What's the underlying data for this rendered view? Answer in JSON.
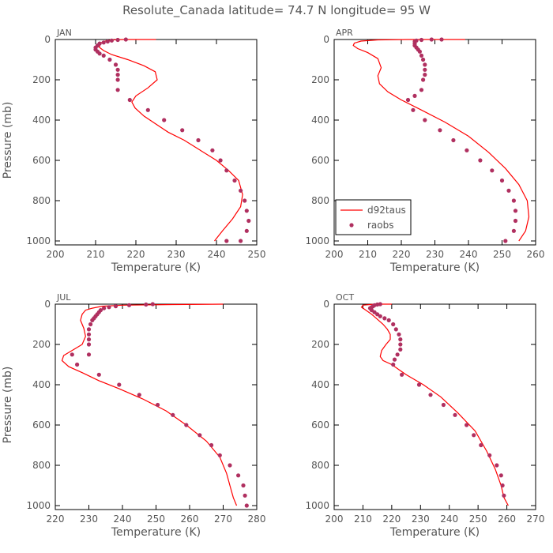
{
  "title": "Resolute_Canada   latitude= 74.7 N longitude= 95 W",
  "legend": {
    "model": "d92taus",
    "obs": "raobs"
  },
  "colors": {
    "model": "#ff0000",
    "obs": "#b03060",
    "axis": "#000000",
    "text": "#555555",
    "background": "#ffffff"
  },
  "chart_data": [
    {
      "type": "line",
      "month": "JAN",
      "xlabel": "Temperature (K)",
      "ylabel": "Pressure (mb)",
      "xlim": [
        200,
        250
      ],
      "ylim": [
        0,
        1020
      ],
      "y_inverted": true,
      "xticks": [
        200,
        210,
        220,
        230,
        240,
        250
      ],
      "yticks": [
        0,
        200,
        400,
        600,
        800,
        1000
      ],
      "legend": false,
      "series": [
        {
          "name": "d92taus",
          "style": "line",
          "x": [
            225,
            221,
            217,
            214,
            212.5,
            211.5,
            211,
            211,
            212,
            214,
            218,
            222,
            224.8,
            225.3,
            223,
            220,
            219,
            219.8,
            222,
            225,
            228,
            232,
            236,
            240,
            243,
            245.5,
            246.5,
            246,
            244,
            241.5,
            239.5
          ],
          "y": [
            0,
            0,
            0,
            2,
            7,
            15,
            25,
            40,
            55,
            75,
            100,
            130,
            160,
            200,
            240,
            280,
            310,
            340,
            380,
            420,
            460,
            500,
            550,
            600,
            650,
            700,
            770,
            830,
            890,
            950,
            1000
          ]
        },
        {
          "name": "raobs",
          "style": "points",
          "x": [
            217.5,
            215.5,
            214,
            213,
            212,
            211,
            210.5,
            210,
            210,
            210.5,
            211,
            212,
            213.5,
            215,
            215.5,
            215.5,
            215.5,
            215.5,
            218.5,
            223,
            227,
            231.5,
            235.5,
            239,
            241,
            242.5,
            244.5,
            246,
            247,
            247.5,
            248,
            247.5,
            246,
            242.5
          ],
          "y": [
            0,
            2,
            5,
            10,
            15,
            20,
            30,
            40,
            50,
            60,
            70,
            80,
            100,
            125,
            150,
            175,
            200,
            250,
            300,
            350,
            400,
            450,
            500,
            550,
            600,
            650,
            700,
            750,
            800,
            850,
            900,
            950,
            1000,
            1000
          ]
        }
      ]
    },
    {
      "type": "line",
      "month": "APR",
      "xlabel": "Temperature (K)",
      "ylabel": "",
      "xlim": [
        200,
        260
      ],
      "ylim": [
        0,
        1020
      ],
      "y_inverted": true,
      "xticks": [
        200,
        210,
        220,
        230,
        240,
        250,
        260
      ],
      "yticks": [
        0,
        200,
        400,
        600,
        800,
        1000
      ],
      "legend": true,
      "legend_position": "bottom-left",
      "series": [
        {
          "name": "d92taus",
          "style": "line",
          "x": [
            239,
            232,
            222,
            213,
            208,
            206,
            205.7,
            207,
            210,
            213,
            214,
            213,
            213.5,
            216,
            220,
            226,
            233,
            240,
            246,
            251,
            255,
            257.5,
            258,
            257,
            255
          ],
          "y": [
            0,
            0,
            0,
            2,
            8,
            18,
            30,
            45,
            65,
            95,
            140,
            180,
            220,
            260,
            300,
            350,
            410,
            480,
            560,
            640,
            720,
            800,
            880,
            950,
            1000
          ]
        },
        {
          "name": "raobs",
          "style": "points",
          "x": [
            232,
            229,
            226,
            224.5,
            224,
            224,
            224,
            224.5,
            225,
            225.5,
            226,
            226.5,
            227,
            227,
            227,
            226.5,
            226,
            224,
            222,
            223.5,
            227,
            231.5,
            235.5,
            239.5,
            243.5,
            247,
            250,
            252,
            253.5,
            254,
            254,
            253.5,
            251
          ],
          "y": [
            0,
            0,
            2,
            5,
            10,
            20,
            30,
            40,
            50,
            60,
            80,
            100,
            125,
            150,
            175,
            200,
            250,
            280,
            300,
            350,
            400,
            450,
            500,
            550,
            600,
            650,
            700,
            750,
            800,
            850,
            900,
            950,
            1000
          ]
        }
      ]
    },
    {
      "type": "line",
      "month": "JUL",
      "xlabel": "Temperature (K)",
      "ylabel": "Pressure (mb)",
      "xlim": [
        220,
        280
      ],
      "ylim": [
        0,
        1020
      ],
      "y_inverted": true,
      "xticks": [
        220,
        230,
        240,
        250,
        260,
        270,
        280
      ],
      "yticks": [
        0,
        200,
        400,
        600,
        800,
        1000
      ],
      "legend": false,
      "series": [
        {
          "name": "d92taus",
          "style": "line",
          "x": [
            270,
            255,
            240,
            234,
            231,
            229,
            228,
            227.5,
            228.5,
            229,
            228,
            225,
            222.5,
            222,
            224,
            228,
            233,
            239,
            246,
            253,
            259,
            265,
            269,
            271,
            272,
            273,
            274
          ],
          "y": [
            0,
            2,
            5,
            10,
            20,
            30,
            50,
            80,
            120,
            160,
            200,
            230,
            255,
            280,
            310,
            340,
            380,
            420,
            470,
            530,
            600,
            680,
            760,
            840,
            900,
            960,
            1000
          ]
        },
        {
          "name": "raobs",
          "style": "points",
          "x": [
            249,
            247,
            242,
            238,
            236,
            234.5,
            233.5,
            233,
            232.5,
            232,
            231.5,
            231,
            230.5,
            230,
            230,
            230,
            230,
            230,
            226.5,
            225,
            233,
            239,
            245,
            250.5,
            255,
            259,
            263,
            266.5,
            269,
            272,
            274.5,
            276,
            276.5,
            277
          ],
          "y": [
            0,
            2,
            5,
            10,
            15,
            20,
            30,
            40,
            50,
            60,
            70,
            80,
            100,
            125,
            150,
            175,
            200,
            250,
            300,
            250,
            350,
            400,
            450,
            500,
            550,
            600,
            650,
            700,
            750,
            800,
            850,
            900,
            950,
            1000
          ]
        }
      ]
    },
    {
      "type": "line",
      "month": "OCT",
      "xlabel": "Temperature (K)",
      "ylabel": "",
      "xlim": [
        200,
        270
      ],
      "ylim": [
        0,
        1020
      ],
      "y_inverted": true,
      "xticks": [
        200,
        210,
        220,
        230,
        240,
        250,
        260,
        270
      ],
      "yticks": [
        0,
        200,
        400,
        600,
        800,
        1000
      ],
      "legend": false,
      "series": [
        {
          "name": "d92taus",
          "style": "line",
          "x": [
            220,
            214,
            210,
            209.5,
            211,
            213,
            215,
            217,
            218.5,
            219.5,
            219.5,
            218,
            216.5,
            216,
            217,
            220,
            225,
            231,
            237,
            243,
            249,
            253,
            256,
            258,
            259,
            260.5
          ],
          "y": [
            0,
            0,
            5,
            15,
            30,
            50,
            75,
            100,
            125,
            150,
            175,
            200,
            230,
            260,
            280,
            300,
            350,
            400,
            460,
            540,
            630,
            730,
            820,
            900,
            960,
            1000
          ]
        },
        {
          "name": "raobs",
          "style": "points",
          "x": [
            216,
            215,
            214,
            213.5,
            213,
            212.5,
            213,
            214,
            215,
            216,
            217.5,
            219,
            220.5,
            221.5,
            222.5,
            223,
            223,
            223,
            222,
            221,
            220.5,
            223.5,
            229.5,
            233.5,
            238,
            242,
            246,
            248.5,
            251,
            254,
            256.5,
            258,
            258.5,
            259
          ],
          "y": [
            0,
            2,
            5,
            10,
            15,
            20,
            30,
            40,
            50,
            60,
            70,
            80,
            100,
            125,
            150,
            175,
            200,
            225,
            250,
            275,
            300,
            350,
            400,
            450,
            500,
            550,
            600,
            650,
            700,
            750,
            800,
            850,
            900,
            950
          ]
        }
      ]
    }
  ]
}
